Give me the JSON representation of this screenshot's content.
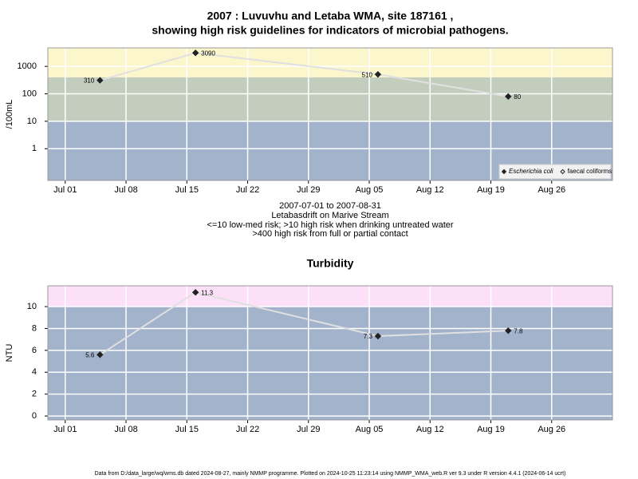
{
  "chart_data": [
    {
      "type": "line",
      "title": [
        "2007 : Luvuvhu and Letaba WMA, site 187161 ,",
        "showing high risk guidelines for indicators of microbial pathogens."
      ],
      "annotations": [
        "2007-07-01 to 2007-08-31",
        "Letabasdrift on Marive Stream",
        "<=10 low-med risk; >10 high risk when drinking untreated water",
        ">400 high risk from full or partial contact"
      ],
      "ylabel": "/100mL",
      "log_scale": true,
      "x": [
        "07-05",
        "07-16",
        "08-06",
        "08-21"
      ],
      "xlim": [
        "06-29",
        "09-02"
      ],
      "xticks": [
        {
          "value": "07-01",
          "label": "Jul 01"
        },
        {
          "value": "07-08",
          "label": "Jul 08"
        },
        {
          "value": "07-15",
          "label": "Jul 15"
        },
        {
          "value": "07-22",
          "label": "Jul 22"
        },
        {
          "value": "07-29",
          "label": "Jul 29"
        },
        {
          "value": "08-05",
          "label": "Aug 05"
        },
        {
          "value": "08-12",
          "label": "Aug 12"
        },
        {
          "value": "08-19",
          "label": "Aug 19"
        },
        {
          "value": "08-26",
          "label": "Aug 26"
        }
      ],
      "ylim": [
        0.07,
        4700
      ],
      "yticks": [
        1,
        10,
        100,
        1000
      ],
      "thresholds": [
        10,
        400
      ],
      "band_colors": [
        "#a3b3cc",
        "#c3cdbd",
        "#fcf6cc"
      ],
      "grid": true,
      "legend": "bottom right",
      "series": [
        {
          "name": "Escherichia coli",
          "color": "#222222",
          "marker": "filled",
          "values": [
            310,
            3090,
            510,
            80
          ]
        },
        {
          "name": "faecal coliforms",
          "color": "#222222",
          "marker": "open",
          "values": [
            null,
            null,
            null,
            null
          ]
        }
      ]
    },
    {
      "type": "line",
      "title": "Turbidity",
      "ylabel": "NTU",
      "log_scale": false,
      "x": [
        "07-05",
        "07-16",
        "08-06",
        "08-21"
      ],
      "xlim": [
        "06-29",
        "09-02"
      ],
      "xticks": [
        {
          "value": "07-01",
          "label": "Jul 01"
        },
        {
          "value": "07-08",
          "label": "Jul 08"
        },
        {
          "value": "07-15",
          "label": "Jul 15"
        },
        {
          "value": "07-22",
          "label": "Jul 22"
        },
        {
          "value": "07-29",
          "label": "Jul 29"
        },
        {
          "value": "08-05",
          "label": "Aug 05"
        },
        {
          "value": "08-12",
          "label": "Aug 12"
        },
        {
          "value": "08-19",
          "label": "Aug 19"
        },
        {
          "value": "08-26",
          "label": "Aug 26"
        }
      ],
      "ylim": [
        -0.36,
        11.9
      ],
      "yticks": [
        0,
        2,
        4,
        6,
        8,
        10
      ],
      "thresholds": [
        10
      ],
      "band_colors": [
        "#a3b3cc",
        "#fbe0f8"
      ],
      "grid": true,
      "series": [
        {
          "name": "Turbidity",
          "color": "#222222",
          "marker": "filled",
          "values": [
            5.6,
            11.3,
            7.3,
            7.8
          ]
        }
      ]
    }
  ],
  "footer": "Data from D:/data_large/wq/wms.db dated 2024-08-27, mainly NMMP programme. Plotted on 2024-10-25 11:23:14 using NMMP_WMA_web.R ver 9.3 under R version 4.4.1 (2024-06-14 ucrt)"
}
